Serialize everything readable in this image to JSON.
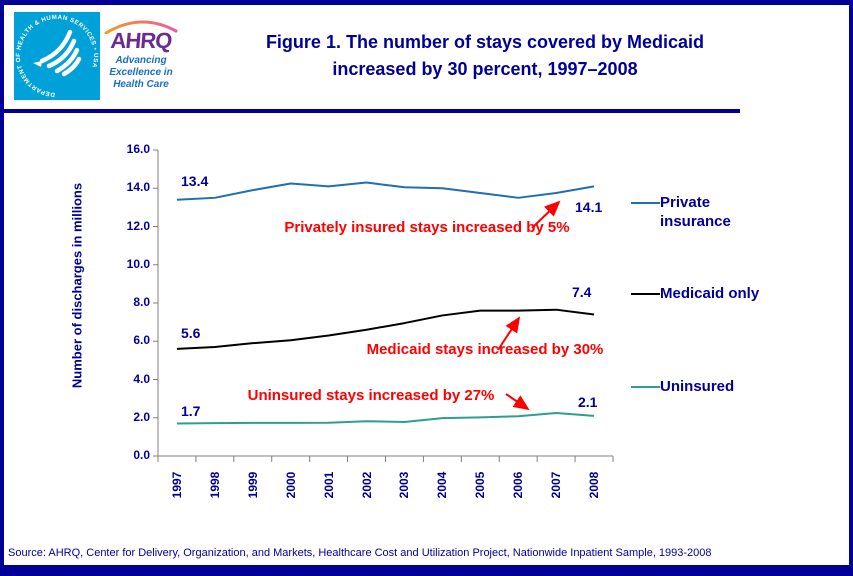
{
  "logo": {
    "ahrq": "AHRQ",
    "seal_text": "DEPARTMENT OF HEALTH & HUMAN SERVICES • USA",
    "tagline1": "Advancing",
    "tagline2": "Excellence in",
    "tagline3": "Health Care"
  },
  "title": {
    "line1": "Figure 1. The number of stays covered by Medicaid",
    "line2": "increased by 30 percent, 1997–2008"
  },
  "source": "Source:  AHRQ,  Center for Delivery, Organization, and Markets, Healthcare Cost and Utilization Project, Nationwide Inpatient Sample, 1993-2008",
  "colors": {
    "navy": "#000099",
    "axis_gray": "#808080",
    "annotation_red": "#FF0000",
    "private_blue": "#1F6FB2",
    "medicaid_black": "#000000",
    "uninsured_teal": "#2E9E94",
    "seal_blue": "#00A0D8",
    "ahrq_purple": "#6A2C91",
    "tagline_blue": "#1B6FBF"
  },
  "chart_data": {
    "type": "line",
    "title": "Figure 1. The number of stays covered by Medicaid increased by 30 percent, 1997–2008",
    "x": [
      "1997",
      "1998",
      "1999",
      "2000",
      "2001",
      "2002",
      "2003",
      "2004",
      "2005",
      "2006",
      "2007",
      "2008"
    ],
    "xlabel": "",
    "ylabel": "Number of discharges  in millions",
    "ylim": [
      0,
      16
    ],
    "ytick_step": 2,
    "yticks": [
      "0.0",
      "2.0",
      "4.0",
      "6.0",
      "8.0",
      "10.0",
      "12.0",
      "14.0",
      "16.0"
    ],
    "grid": false,
    "legend_position": "right",
    "series": [
      {
        "name": "Private insurance",
        "color": "#1F6FB2",
        "values": [
          13.4,
          13.5,
          13.9,
          14.25,
          14.1,
          14.3,
          14.05,
          14.0,
          13.75,
          13.5,
          13.75,
          14.1
        ],
        "start_label": "13.4",
        "end_label": "14.1"
      },
      {
        "name": "Medicaid only",
        "color": "#000000",
        "values": [
          5.6,
          5.7,
          5.9,
          6.05,
          6.3,
          6.6,
          6.95,
          7.35,
          7.6,
          7.6,
          7.65,
          7.4
        ],
        "start_label": "5.6",
        "end_label": "7.4"
      },
      {
        "name": "Uninsured",
        "color": "#2E9E94",
        "values": [
          1.7,
          1.72,
          1.73,
          1.73,
          1.74,
          1.82,
          1.78,
          1.98,
          2.02,
          2.08,
          2.25,
          2.1
        ],
        "start_label": "1.7",
        "end_label": "2.1"
      }
    ],
    "annotations": [
      {
        "text": "Privately insured stays increased by 5%",
        "color": "#FF0000"
      },
      {
        "text": "Medicaid stays increased by 30%",
        "color": "#FF0000"
      },
      {
        "text": "Uninsured stays increased by 27%",
        "color": "#FF0000"
      }
    ]
  }
}
